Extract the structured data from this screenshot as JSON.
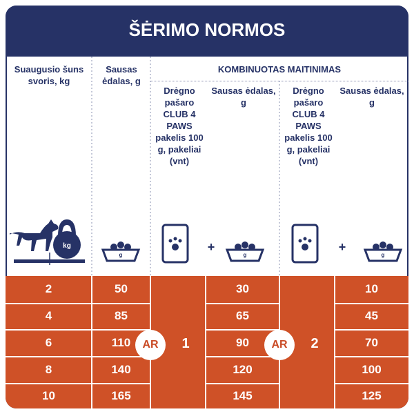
{
  "header": {
    "title": "ŠĖRIMO NORMOS"
  },
  "table": {
    "columns": [
      "Suaugusio šuns svoris, kg",
      "Sausas ėdalas, g"
    ],
    "group_header": "KOMBINUOTAS MAITINIMAS",
    "sub_columns": [
      "Drėgno pašaro CLUB 4 PAWS pakelis 100 g, pakeliai (vnt)",
      "Sausas ėdalas, g",
      "Drėgno pašaro CLUB 4 PAWS pakelis 100 g, pakeliai (vnt)",
      "Sausas ėdalas, g"
    ],
    "rows": [
      [
        2,
        50,
        30,
        10
      ],
      [
        4,
        85,
        65,
        45
      ],
      [
        6,
        110,
        90,
        70
      ],
      [
        8,
        140,
        120,
        100
      ],
      [
        10,
        165,
        145,
        125
      ]
    ],
    "options": [
      {
        "connector": "AR",
        "number": 1
      },
      {
        "connector": "AR",
        "number": 2
      }
    ]
  },
  "icons": {
    "weight_unit": "kg",
    "gram_unit": "g",
    "plus": "+"
  }
}
